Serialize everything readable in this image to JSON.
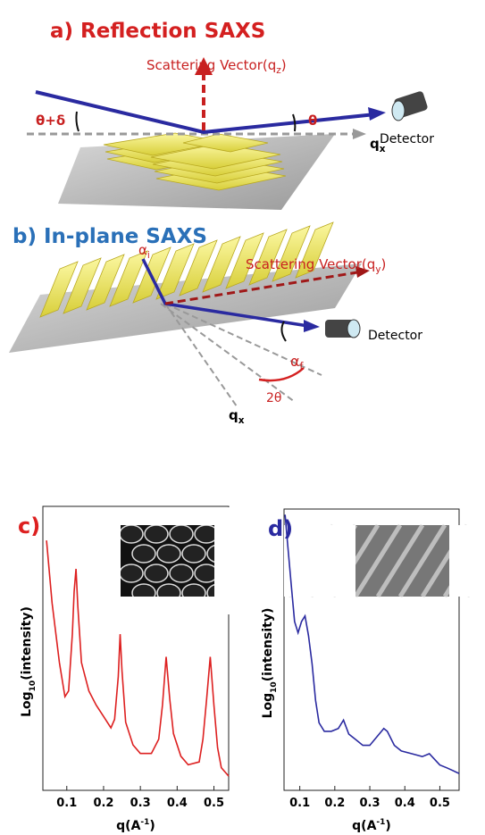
{
  "panel_a": {
    "title": "a) Reflection SAXS",
    "scattering_vector": [
      "Scattering Vector(q",
      "z",
      ")"
    ],
    "detector": "Detector",
    "angle_in": "θ+δ",
    "angle_out": "θ",
    "axis": [
      "q",
      "x"
    ]
  },
  "panel_b": {
    "title": "b) In-plane SAXS",
    "alpha_i": [
      "α",
      "i"
    ],
    "scattering_vector": [
      "Scattering Vector(q",
      "y",
      ")"
    ],
    "alpha_f": [
      "α",
      "f"
    ],
    "detector": "Detector",
    "two_theta": "2θ",
    "axis": [
      "q",
      "x"
    ]
  },
  "chart_data": [
    {
      "type": "line",
      "title": "c)",
      "color": "#dd2020",
      "ylabel": [
        "Log",
        "10",
        "(intensity)"
      ],
      "xlabel": [
        "q(A",
        "-1",
        ")"
      ],
      "x": [
        0.045,
        0.06,
        0.08,
        0.095,
        0.105,
        0.115,
        0.12,
        0.125,
        0.13,
        0.14,
        0.16,
        0.18,
        0.2,
        0.22,
        0.23,
        0.24,
        0.245,
        0.25,
        0.26,
        0.28,
        0.3,
        0.33,
        0.35,
        0.36,
        0.37,
        0.38,
        0.39,
        0.41,
        0.43,
        0.46,
        0.47,
        0.48,
        0.49,
        0.5,
        0.51,
        0.52,
        0.54
      ],
      "values": [
        88,
        66,
        45,
        33,
        35,
        55,
        70,
        78,
        65,
        45,
        35,
        30,
        26,
        22,
        25,
        40,
        55,
        42,
        24,
        16,
        13,
        13,
        18,
        30,
        47,
        32,
        20,
        12,
        9,
        10,
        18,
        32,
        47,
        30,
        15,
        8,
        5
      ],
      "xlim": [
        0.035,
        0.54
      ],
      "ylim": [
        0,
        100
      ],
      "xticks": [
        0.1,
        0.2,
        0.3,
        0.4,
        0.5
      ]
    },
    {
      "type": "line",
      "title": "d)",
      "color": "#2a2aa0",
      "ylabel": [
        "Log",
        "10",
        "(intensity)"
      ],
      "xlabel": [
        "q(A",
        "-1",
        ")"
      ],
      "x": [
        0.058,
        0.065,
        0.075,
        0.085,
        0.095,
        0.105,
        0.115,
        0.125,
        0.135,
        0.145,
        0.155,
        0.17,
        0.19,
        0.21,
        0.225,
        0.24,
        0.26,
        0.28,
        0.3,
        0.32,
        0.34,
        0.35,
        0.37,
        0.39,
        0.42,
        0.45,
        0.47,
        0.5,
        0.52,
        0.555
      ],
      "values": [
        98,
        88,
        74,
        60,
        56,
        60,
        62,
        55,
        45,
        32,
        24,
        21,
        21,
        22,
        25,
        20,
        18,
        16,
        16,
        19,
        22,
        21,
        16,
        14,
        13,
        12,
        13,
        9,
        8,
        6
      ],
      "xlim": [
        0.055,
        0.555
      ],
      "ylim": [
        0,
        100
      ],
      "xticks": [
        0.1,
        0.2,
        0.3,
        0.4,
        0.5
      ]
    }
  ]
}
